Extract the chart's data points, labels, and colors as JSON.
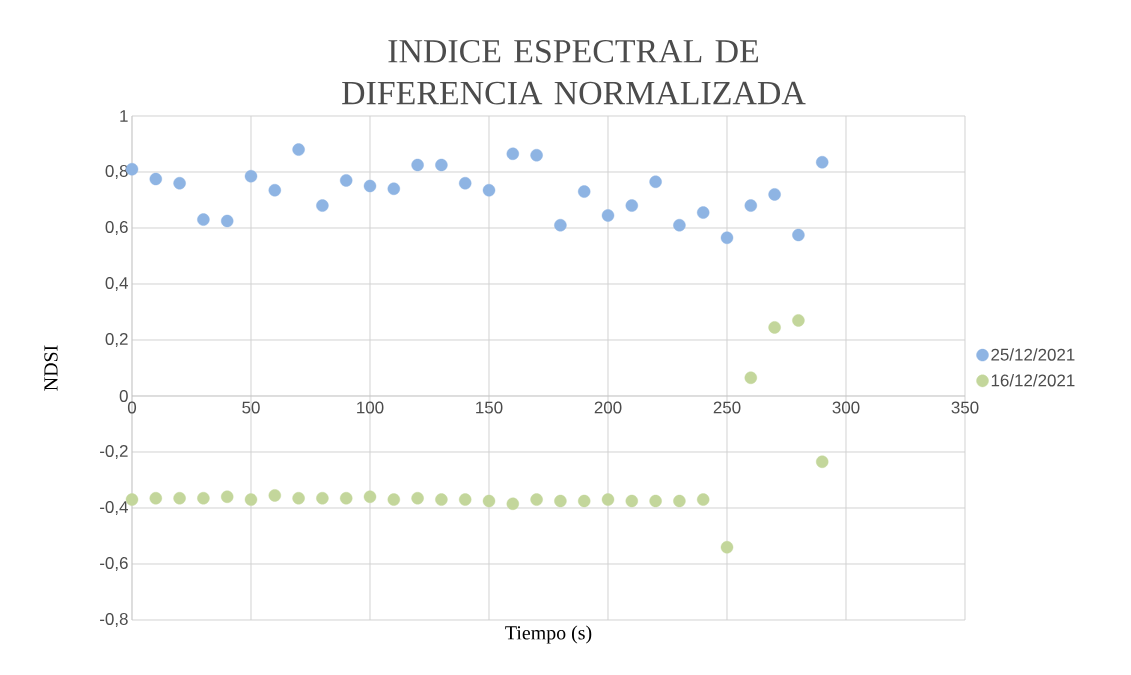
{
  "chart_data": {
    "type": "scatter",
    "title": "INDICE ESPECTRAL DE DIFERENCIA NORMALIZADA",
    "xlabel": "Tiempo (s)",
    "ylabel": "NDSI",
    "x": [
      0,
      10,
      20,
      30,
      40,
      50,
      60,
      70,
      80,
      90,
      100,
      110,
      120,
      130,
      140,
      150,
      160,
      170,
      180,
      190,
      200,
      210,
      220,
      230,
      240,
      250,
      260,
      270,
      280,
      290
    ],
    "series": [
      {
        "name": "25/12/2021",
        "color": "#8eb4e3",
        "values": [
          0.81,
          0.775,
          0.76,
          0.63,
          0.625,
          0.785,
          0.735,
          0.88,
          0.68,
          0.77,
          0.75,
          0.74,
          0.825,
          0.825,
          0.76,
          0.735,
          0.865,
          0.86,
          0.61,
          0.73,
          0.645,
          0.68,
          0.765,
          0.61,
          0.655,
          0.565,
          0.68,
          0.72,
          0.575,
          0.835
        ]
      },
      {
        "name": "16/12/2021",
        "color": "#c3d69b",
        "values": [
          -0.37,
          -0.365,
          -0.365,
          -0.365,
          -0.36,
          -0.37,
          -0.355,
          -0.365,
          -0.365,
          -0.365,
          -0.36,
          -0.37,
          -0.365,
          -0.37,
          -0.37,
          -0.375,
          -0.385,
          -0.37,
          -0.375,
          -0.375,
          -0.37,
          -0.375,
          -0.375,
          -0.375,
          -0.37,
          -0.54,
          0.065,
          0.245,
          0.27,
          -0.235
        ]
      }
    ],
    "xlim": [
      0,
      350
    ],
    "xticks": [
      0,
      50,
      100,
      150,
      200,
      250,
      300,
      350
    ],
    "ylim": [
      -0.8,
      1
    ],
    "yticks": [
      {
        "value": -0.8,
        "label": "-0,8"
      },
      {
        "value": -0.6,
        "label": "-0,6"
      },
      {
        "value": -0.4,
        "label": "-0,4"
      },
      {
        "value": -0.2,
        "label": "-0,2"
      },
      {
        "value": 0,
        "label": "0"
      },
      {
        "value": 0.2,
        "label": "0,2"
      },
      {
        "value": 0.4,
        "label": "0,4"
      },
      {
        "value": 0.6,
        "label": "0,6"
      },
      {
        "value": 0.8,
        "label": "0,8"
      },
      {
        "value": 1,
        "label": "1"
      }
    ],
    "grid": true,
    "legend": "right",
    "marker": "circle"
  }
}
